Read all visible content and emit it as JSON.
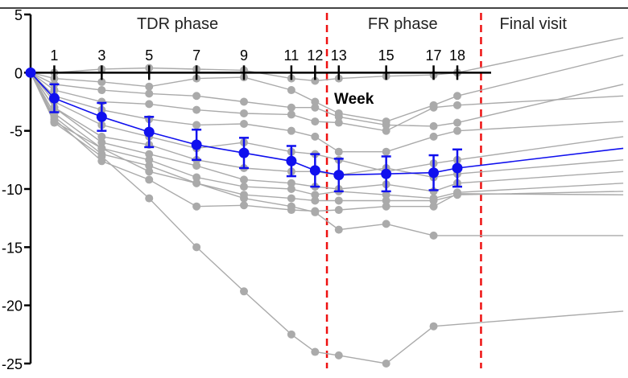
{
  "chart_data": {
    "type": "line",
    "xlabel": "Week",
    "ylabel": "",
    "ylim": [
      -25,
      5
    ],
    "y_ticks": [
      5,
      0,
      -5,
      -10,
      -15,
      -20,
      -25
    ],
    "x_ticks": [
      1,
      3,
      5,
      7,
      9,
      11,
      12,
      13,
      15,
      17,
      18
    ],
    "phases": [
      {
        "label": "TDR phase",
        "x_center": 6.2
      },
      {
        "label": "FR phase",
        "x_center": 15.7
      },
      {
        "label": "Final visit",
        "x_center": 21.2
      }
    ],
    "phase_boundaries": [
      12.5,
      19.0
    ],
    "colors": {
      "mean": "#1010ee",
      "individual": "#aaaaaa",
      "boundary": "#ee1111",
      "axis": "#000000"
    },
    "mean_series": {
      "name": "",
      "points": [
        {
          "x": 0,
          "y": 0,
          "err": 0
        },
        {
          "x": 1,
          "y": -2.2,
          "err": 1.2
        },
        {
          "x": 3,
          "y": -3.8,
          "err": 1.2
        },
        {
          "x": 5,
          "y": -5.1,
          "err": 1.3
        },
        {
          "x": 7,
          "y": -6.2,
          "err": 1.3
        },
        {
          "x": 9,
          "y": -6.9,
          "err": 1.3
        },
        {
          "x": 11,
          "y": -7.6,
          "err": 1.3
        },
        {
          "x": 12,
          "y": -8.4,
          "err": 1.4
        },
        {
          "x": 13,
          "y": -8.8,
          "err": 1.4
        },
        {
          "x": 15,
          "y": -8.7,
          "err": 1.5
        },
        {
          "x": 17,
          "y": -8.6,
          "err": 1.5
        },
        {
          "x": 18,
          "y": -8.2,
          "err": 1.6
        },
        {
          "x": 25,
          "y": -6.5,
          "err": 0
        }
      ]
    },
    "individual_series": [
      {
        "points": [
          [
            0,
            0
          ],
          [
            1,
            0
          ],
          [
            3,
            0.3
          ],
          [
            5,
            0.4
          ],
          [
            7,
            0.3
          ],
          [
            9,
            0.2
          ],
          [
            11,
            -0.5
          ],
          [
            12,
            -0.7
          ],
          [
            13,
            -0.5
          ],
          [
            15,
            -0.3
          ],
          [
            17,
            -0.2
          ],
          [
            18,
            0
          ],
          [
            25,
            3
          ]
        ]
      },
      {
        "points": [
          [
            0,
            0
          ],
          [
            1,
            -0.5
          ],
          [
            3,
            -0.8
          ],
          [
            5,
            -1.2
          ],
          [
            7,
            -0.5
          ],
          [
            9,
            -0.4
          ],
          [
            11,
            -1.5
          ],
          [
            12,
            -2.5
          ],
          [
            13,
            -3.5
          ],
          [
            15,
            -4.2
          ],
          [
            17,
            -2.8
          ],
          [
            18,
            -2.0
          ],
          [
            25,
            1.5
          ]
        ]
      },
      {
        "points": [
          [
            0,
            0
          ],
          [
            1,
            -1.0
          ],
          [
            3,
            -1.5
          ],
          [
            5,
            -1.8
          ],
          [
            7,
            -2.0
          ],
          [
            9,
            -2.5
          ],
          [
            11,
            -3.0
          ],
          [
            12,
            -3.0
          ],
          [
            13,
            -3.8
          ],
          [
            15,
            -4.5
          ],
          [
            17,
            -4.6
          ],
          [
            18,
            -4.3
          ],
          [
            25,
            -1.0
          ]
        ]
      },
      {
        "points": [
          [
            0,
            0
          ],
          [
            1,
            -1.5
          ],
          [
            3,
            -2.5
          ],
          [
            5,
            -2.7
          ],
          [
            7,
            -3.2
          ],
          [
            9,
            -3.5
          ],
          [
            11,
            -3.6
          ],
          [
            12,
            -4.2
          ],
          [
            13,
            -4.3
          ],
          [
            15,
            -5.0
          ],
          [
            17,
            -3.0
          ],
          [
            18,
            -2.8
          ],
          [
            25,
            -2.0
          ]
        ]
      },
      {
        "points": [
          [
            0,
            0
          ],
          [
            1,
            -2.0
          ],
          [
            3,
            -3.2
          ],
          [
            5,
            -4.0
          ],
          [
            7,
            -4.5
          ],
          [
            9,
            -4.4
          ],
          [
            11,
            -5.0
          ],
          [
            12,
            -5.5
          ],
          [
            13,
            -6.8
          ],
          [
            15,
            -6.8
          ],
          [
            17,
            -5.5
          ],
          [
            18,
            -5.0
          ],
          [
            25,
            -4.2
          ]
        ]
      },
      {
        "points": [
          [
            0,
            0
          ],
          [
            1,
            -2.5
          ],
          [
            3,
            -4.5
          ],
          [
            5,
            -5.5
          ],
          [
            7,
            -6.5
          ],
          [
            9,
            -6.0
          ],
          [
            11,
            -6.8
          ],
          [
            12,
            -7.0
          ],
          [
            13,
            -7.5
          ],
          [
            15,
            -8.5
          ],
          [
            17,
            -7.8
          ],
          [
            18,
            -7.5
          ],
          [
            25,
            -5.5
          ]
        ]
      },
      {
        "points": [
          [
            0,
            0
          ],
          [
            1,
            -3.0
          ],
          [
            3,
            -5.5
          ],
          [
            5,
            -6.2
          ],
          [
            7,
            -7.5
          ],
          [
            9,
            -8.2
          ],
          [
            11,
            -8.5
          ],
          [
            12,
            -8.5
          ],
          [
            13,
            -8.8
          ],
          [
            15,
            -8.2
          ],
          [
            17,
            -9.0
          ],
          [
            18,
            -8.7
          ],
          [
            25,
            -7.5
          ]
        ]
      },
      {
        "points": [
          [
            0,
            0
          ],
          [
            1,
            -3.0
          ],
          [
            3,
            -6.0
          ],
          [
            5,
            -7.0
          ],
          [
            7,
            -8.0
          ],
          [
            9,
            -9.2
          ],
          [
            11,
            -9.5
          ],
          [
            12,
            -9.8
          ],
          [
            13,
            -10.0
          ],
          [
            15,
            -9.6
          ],
          [
            17,
            -10.2
          ],
          [
            18,
            -9.5
          ],
          [
            25,
            -8.5
          ]
        ]
      },
      {
        "points": [
          [
            0,
            0
          ],
          [
            1,
            -3.5
          ],
          [
            3,
            -6.5
          ],
          [
            5,
            -7.5
          ],
          [
            7,
            -9.0
          ],
          [
            9,
            -9.8
          ],
          [
            11,
            -10.0
          ],
          [
            12,
            -10.5
          ],
          [
            13,
            -10.2
          ],
          [
            15,
            -10.5
          ],
          [
            17,
            -10.8
          ],
          [
            18,
            -10.3
          ],
          [
            25,
            -9.5
          ]
        ]
      },
      {
        "points": [
          [
            0,
            0
          ],
          [
            1,
            -3.8
          ],
          [
            3,
            -7.0
          ],
          [
            5,
            -8.0
          ],
          [
            7,
            -9.5
          ],
          [
            9,
            -10.5
          ],
          [
            11,
            -10.8
          ],
          [
            12,
            -11.0
          ],
          [
            13,
            -11.0
          ],
          [
            15,
            -11.0
          ],
          [
            17,
            -11.0
          ],
          [
            18,
            -10.5
          ],
          [
            25,
            -10.2
          ]
        ]
      },
      {
        "points": [
          [
            0,
            0
          ],
          [
            1,
            -4.0
          ],
          [
            3,
            -7.6
          ],
          [
            5,
            -9.2
          ],
          [
            7,
            -11.5
          ],
          [
            9,
            -11.4
          ],
          [
            11,
            -11.8
          ],
          [
            12,
            -11.9
          ],
          [
            13,
            -11.8
          ],
          [
            15,
            -11.5
          ],
          [
            17,
            -11.5
          ],
          [
            18,
            -10.4
          ],
          [
            25,
            -10.5
          ]
        ]
      },
      {
        "points": [
          [
            0,
            0
          ],
          [
            1,
            -4.2
          ],
          [
            3,
            -6.5
          ],
          [
            5,
            -8.5
          ],
          [
            7,
            -9.5
          ],
          [
            9,
            -10.8
          ],
          [
            11,
            -11.5
          ],
          [
            12,
            -12.0
          ],
          [
            13,
            -13.5
          ],
          [
            15,
            -13.0
          ],
          [
            17,
            -14.0
          ],
          [
            25,
            -14.0
          ]
        ]
      },
      {
        "points": [
          [
            0,
            0
          ],
          [
            1,
            -4.3
          ],
          [
            3,
            -7.2
          ],
          [
            5,
            -10.8
          ],
          [
            7,
            -15.0
          ],
          [
            9,
            -18.8
          ],
          [
            11,
            -22.5
          ],
          [
            12,
            -24.0
          ],
          [
            13,
            -24.3
          ],
          [
            15,
            -25.0
          ],
          [
            17,
            -21.8
          ],
          [
            25,
            -20.5
          ]
        ]
      }
    ]
  }
}
